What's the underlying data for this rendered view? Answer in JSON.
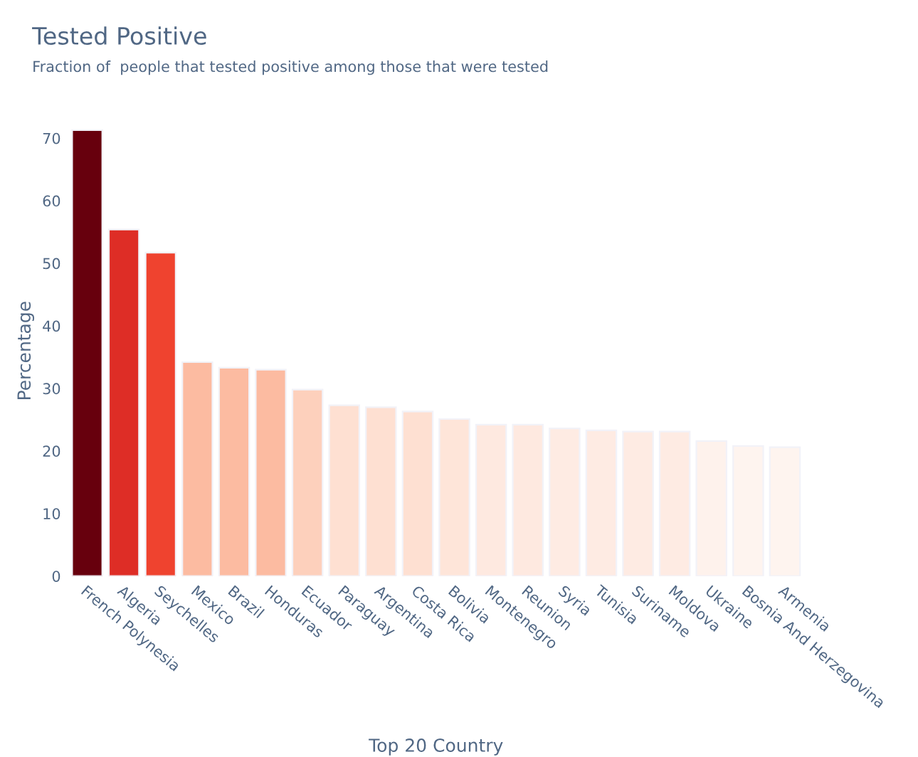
{
  "chart_data": {
    "type": "bar",
    "title": "Tested Positive",
    "subtitle": "Fraction of  people that tested positive among those that were tested",
    "xlabel": "Top 20 Country",
    "ylabel": "Percentage",
    "categories": [
      "French Polynesia",
      "Algeria",
      "Seychelles",
      "Mexico",
      "Brazil",
      "Honduras",
      "Ecuador",
      "Paraguay",
      "Argentina",
      "Costa Rica",
      "Bolivia",
      "Montenegro",
      "Reunion",
      "Syria",
      "Tunisia",
      "Suriname",
      "Moldova",
      "Ukraine",
      "Bosnia And Herzegovina",
      "Armenia"
    ],
    "values": [
      71.3,
      55.4,
      51.7,
      34.2,
      33.3,
      33.0,
      29.8,
      27.3,
      27.0,
      26.3,
      25.1,
      24.2,
      24.2,
      23.6,
      23.3,
      23.1,
      23.1,
      21.6,
      20.8,
      20.6
    ],
    "colors": [
      "#67000d",
      "#de2d26",
      "#ef432f",
      "#fcbba1",
      "#fcbba1",
      "#fcbba1",
      "#fdd0bc",
      "#fee0d2",
      "#fee0d2",
      "#fee0d2",
      "#fee5d9",
      "#fee9e0",
      "#fee9e0",
      "#feebe3",
      "#feebe3",
      "#feebe3",
      "#feebe3",
      "#fef2ec",
      "#fef4ef",
      "#fef4ef"
    ],
    "ylim": [
      0,
      72
    ],
    "yticks": [
      0,
      10,
      20,
      30,
      40,
      50,
      60,
      70
    ],
    "grid": false,
    "legend": false
  }
}
